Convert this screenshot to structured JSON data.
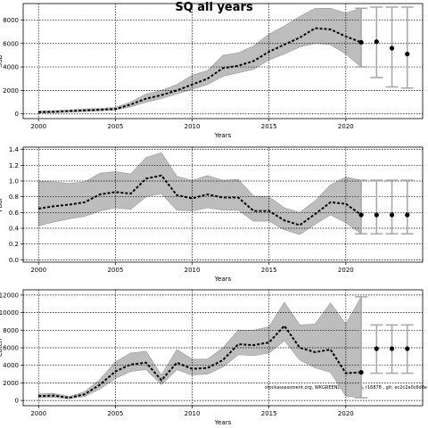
{
  "title": "SQ all years",
  "footnote": "stockassessment.org, WKGREENCOD_GRI_S, r16878 , git: ec2c2a0c6d8e",
  "colors": {
    "band": "#bdbdbd",
    "band_edge": "#9a9a9a",
    "line": "#000000",
    "point": "#000000",
    "ci": "#a6a6a6"
  },
  "chart_data": [
    {
      "type": "line",
      "panel": "SSB",
      "xlabel": "Years",
      "ylabel": "SSB",
      "xlim": [
        1999,
        2025
      ],
      "ylim": [
        -400,
        9400
      ],
      "xticks": [
        2000,
        2005,
        2010,
        2015,
        2020
      ],
      "yticks": [
        0,
        2000,
        4000,
        6000,
        8000
      ],
      "grid": true,
      "x": [
        2000,
        2001,
        2002,
        2003,
        2004,
        2005,
        2006,
        2007,
        2008,
        2009,
        2010,
        2011,
        2012,
        2013,
        2014,
        2015,
        2016,
        2017,
        2018,
        2019,
        2020,
        2021
      ],
      "estimate": [
        150,
        180,
        240,
        300,
        350,
        420,
        800,
        1300,
        1600,
        2000,
        2500,
        3000,
        3900,
        4100,
        4500,
        5300,
        5900,
        6500,
        7300,
        7200,
        6600,
        6100
      ],
      "lower": [
        80,
        100,
        150,
        200,
        260,
        330,
        600,
        1000,
        1300,
        1700,
        2100,
        2500,
        3200,
        3500,
        3800,
        4600,
        5100,
        5700,
        6000,
        5900,
        5100,
        4000
      ],
      "upper": [
        250,
        280,
        340,
        420,
        470,
        560,
        1000,
        1700,
        2000,
        2500,
        3300,
        3700,
        5000,
        5200,
        5800,
        6800,
        7500,
        8300,
        9000,
        9000,
        8600,
        9000
      ],
      "forecast": {
        "x": [
          2021,
          2022,
          2023,
          2024
        ],
        "estimate": [
          6100,
          6150,
          5600,
          5100
        ],
        "lower": [
          4000,
          3100,
          2300,
          2200
        ],
        "upper": [
          9000,
          9100,
          9100,
          9100
        ]
      }
    },
    {
      "type": "line",
      "panel": "Fbar",
      "xlabel": "Years",
      "ylabel": "Fbar",
      "xlim": [
        1999,
        2025
      ],
      "ylim": [
        -0.03,
        1.43
      ],
      "xticks": [
        2000,
        2005,
        2010,
        2015,
        2020
      ],
      "yticks": [
        0.0,
        0.2,
        0.4,
        0.6,
        0.8,
        1.0,
        1.2,
        1.4
      ],
      "grid": true,
      "x": [
        2000,
        2001,
        2002,
        2003,
        2004,
        2005,
        2006,
        2007,
        2008,
        2009,
        2010,
        2011,
        2012,
        2013,
        2014,
        2015,
        2016,
        2017,
        2018,
        2019,
        2020,
        2021
      ],
      "estimate": [
        0.65,
        0.68,
        0.7,
        0.73,
        0.83,
        0.86,
        0.84,
        1.03,
        1.07,
        0.82,
        0.78,
        0.83,
        0.79,
        0.79,
        0.62,
        0.62,
        0.5,
        0.44,
        0.58,
        0.73,
        0.71,
        0.57
      ],
      "lower": [
        0.43,
        0.48,
        0.52,
        0.55,
        0.62,
        0.66,
        0.64,
        0.8,
        0.84,
        0.63,
        0.62,
        0.66,
        0.63,
        0.63,
        0.49,
        0.49,
        0.38,
        0.32,
        0.45,
        0.57,
        0.47,
        0.33
      ],
      "upper": [
        1.0,
        0.99,
        0.97,
        0.99,
        1.1,
        1.12,
        1.09,
        1.3,
        1.36,
        1.06,
        1.01,
        1.07,
        1.01,
        1.02,
        0.81,
        0.8,
        0.66,
        0.6,
        0.75,
        0.95,
        1.05,
        1.01
      ],
      "forecast": {
        "x": [
          2021,
          2022,
          2023,
          2024
        ],
        "estimate": [
          0.57,
          0.57,
          0.57,
          0.57
        ],
        "lower": [
          0.33,
          0.33,
          0.33,
          0.33
        ],
        "upper": [
          1.01,
          1.01,
          1.01,
          1.01
        ]
      }
    },
    {
      "type": "line",
      "panel": "Catch",
      "xlabel": "Years",
      "ylabel": "Catch",
      "xlim": [
        1999,
        2025
      ],
      "ylim": [
        -600,
        12600
      ],
      "xticks": [
        2000,
        2005,
        2010,
        2015,
        2020
      ],
      "yticks": [
        0,
        2000,
        4000,
        6000,
        8000,
        10000,
        12000
      ],
      "grid": true,
      "x": [
        2000,
        2001,
        2002,
        2003,
        2004,
        2005,
        2006,
        2007,
        2008,
        2009,
        2010,
        2011,
        2012,
        2013,
        2014,
        2015,
        2016,
        2017,
        2018,
        2019,
        2020,
        2021
      ],
      "estimate": [
        500,
        550,
        300,
        700,
        1800,
        3300,
        4100,
        4300,
        2300,
        4300,
        3600,
        3700,
        4600,
        6400,
        6300,
        6600,
        8500,
        6000,
        5500,
        5800,
        3100,
        3200
      ],
      "lower": [
        300,
        350,
        200,
        450,
        1300,
        2500,
        3300,
        3500,
        1800,
        3500,
        2900,
        3000,
        3800,
        5200,
        5100,
        5400,
        6800,
        4600,
        3700,
        3200,
        500,
        300
      ],
      "upper": [
        750,
        800,
        450,
        1000,
        2400,
        4400,
        5400,
        5600,
        2900,
        5800,
        4700,
        4700,
        6000,
        8000,
        8000,
        8400,
        11200,
        8600,
        8700,
        11100,
        8700,
        11800
      ],
      "forecast": {
        "x": [
          2021,
          2022,
          2023,
          2024
        ],
        "estimate": [
          3200,
          5900,
          5900,
          5900
        ],
        "lower": [
          300,
          3100,
          3100,
          3100
        ],
        "upper": [
          11800,
          8600,
          8600,
          8600
        ]
      }
    }
  ]
}
